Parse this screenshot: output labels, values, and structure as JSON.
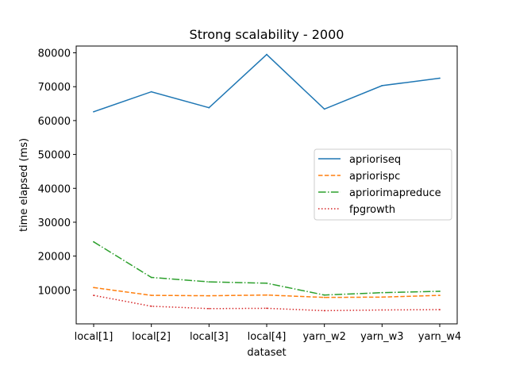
{
  "chart_data": {
    "type": "line",
    "title": "Strong scalability - 2000",
    "xlabel": "dataset",
    "ylabel": "time elapsed (ms)",
    "categories": [
      "local[1]",
      "local[2]",
      "local[3]",
      "local[4]",
      "yarn_w2",
      "yarn_w3",
      "yarn_w4"
    ],
    "ylim": [
      0,
      82000
    ],
    "yticks": [
      10000,
      20000,
      30000,
      40000,
      50000,
      60000,
      70000,
      80000
    ],
    "ytick_labels": [
      "10000",
      "20000",
      "30000",
      "40000",
      "50000",
      "60000",
      "70000",
      "80000"
    ],
    "grid": false,
    "legend_position": "right",
    "series": [
      {
        "name": "aprioriseq",
        "color": "#1f77b4",
        "style": "solid",
        "values": [
          62600,
          68500,
          63800,
          79500,
          63400,
          70300,
          72500
        ]
      },
      {
        "name": "apriorispc",
        "color": "#ff7f0e",
        "style": "dashed",
        "values": [
          10700,
          8400,
          8300,
          8500,
          7800,
          7900,
          8400
        ]
      },
      {
        "name": "apriorimapreduce",
        "color": "#2ca02c",
        "style": "dashdot",
        "values": [
          24200,
          13700,
          12400,
          12000,
          8500,
          9200,
          9600
        ]
      },
      {
        "name": "fpgrowth",
        "color": "#d62728",
        "style": "dotted",
        "values": [
          8400,
          5200,
          4500,
          4600,
          3900,
          4100,
          4200
        ]
      }
    ]
  }
}
